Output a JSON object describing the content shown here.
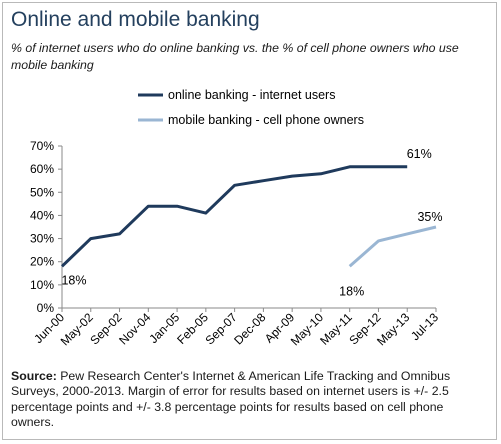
{
  "title": "Online and mobile banking",
  "subtitle": "% of internet users who do online banking vs. the % of cell phone owners who use mobile banking",
  "source": {
    "label": "Source:",
    "text": " Pew Research Center's Internet & American Life Tracking and Omnibus Surveys, 2000-2013.  Margin of error for results based on internet users is +/- 2.5 percentage points and +/- 3.8 percentage points for results based on cell phone owners."
  },
  "chart_data": {
    "type": "line",
    "categories": [
      "Jun-00",
      "May-02",
      "Sep-02",
      "Nov-04",
      "Jan-05",
      "Feb-05",
      "Sep-07",
      "Dec-08",
      "Apr-09",
      "May-10",
      "May-11",
      "Sep-12",
      "May-13",
      "Jul-13"
    ],
    "ylim": [
      0,
      70
    ],
    "yticks": [
      "0%",
      "10%",
      "20%",
      "30%",
      "40%",
      "50%",
      "60%",
      "70%"
    ],
    "grid": false,
    "legend_position": "top",
    "series": [
      {
        "name": "online banking - internet users",
        "color": "#1f3a5c",
        "values": [
          18,
          30,
          32,
          44,
          44,
          41,
          53,
          55,
          57,
          58,
          61,
          61,
          61,
          null
        ]
      },
      {
        "name": "mobile banking - cell phone owners",
        "color": "#9ab6d3",
        "values": [
          null,
          null,
          null,
          null,
          null,
          null,
          null,
          null,
          null,
          null,
          18,
          29,
          32,
          35
        ]
      }
    ],
    "data_labels": [
      {
        "text": "18%",
        "series": 0,
        "index": 0
      },
      {
        "text": "61%",
        "series": 0,
        "index": 12
      },
      {
        "text": "18%",
        "series": 1,
        "index": 10
      },
      {
        "text": "35%",
        "series": 1,
        "index": 13
      }
    ]
  }
}
